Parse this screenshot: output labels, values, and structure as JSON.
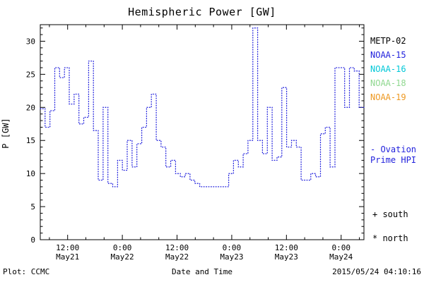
{
  "title": "Hemispheric Power [GW]",
  "ylabel": "P [GW]",
  "footer": {
    "credit": "Plot: CCMC",
    "xlabel": "Date and Time",
    "timestamp": "2015/05/24 04:10:16"
  },
  "legend": {
    "satellites": [
      {
        "label": "METP-02",
        "color": "#000000"
      },
      {
        "label": "NOAA-15",
        "color": "#2222dd"
      },
      {
        "label": "NOAA-16",
        "color": "#00c8d8"
      },
      {
        "label": "NOAA-18",
        "color": "#90d890"
      },
      {
        "label": "NOAA-19",
        "color": "#ee9922"
      }
    ],
    "ovation_label": "- Ovation Prime HPI",
    "ovation_color": "#2222dd",
    "south_label": "+ south",
    "north_label": "* north"
  },
  "chart_data": {
    "type": "line",
    "style": "step-dotted",
    "title": "Hemispheric Power [GW]",
    "xlabel": "Date and Time",
    "ylabel": "P [GW]",
    "ylim": [
      0,
      32.5
    ],
    "yticks": [
      0,
      5,
      10,
      15,
      20,
      25,
      30
    ],
    "x_hours_span": 71,
    "xticks": [
      {
        "hour": 6,
        "time": "12:00",
        "date": "May21"
      },
      {
        "hour": 18,
        "time": "0:00",
        "date": "May22"
      },
      {
        "hour": 30,
        "time": "12:00",
        "date": "May22"
      },
      {
        "hour": 42,
        "time": "0:00",
        "date": "May23"
      },
      {
        "hour": 54,
        "time": "12:00",
        "date": "May23"
      },
      {
        "hour": 66,
        "time": "0:00",
        "date": "May24"
      }
    ],
    "line_color": "#2222dd",
    "grid": false,
    "legend_position": "right",
    "values": [
      19.8,
      17,
      19.5,
      26,
      24.5,
      26,
      20.5,
      22,
      17.5,
      18.5,
      27,
      16.5,
      9,
      20,
      8.5,
      8,
      12,
      10.5,
      15,
      11,
      14.5,
      17,
      20,
      22,
      15,
      14,
      11,
      12,
      10,
      9.5,
      10,
      9,
      8.5,
      8,
      8,
      8,
      8,
      8,
      8,
      10,
      12,
      11,
      13,
      15,
      32,
      15,
      13,
      20,
      12,
      12.5,
      23,
      14,
      15,
      14,
      9,
      9,
      10,
      9.5,
      16,
      17,
      11,
      26,
      26,
      20,
      26,
      25.5,
      20
    ]
  }
}
